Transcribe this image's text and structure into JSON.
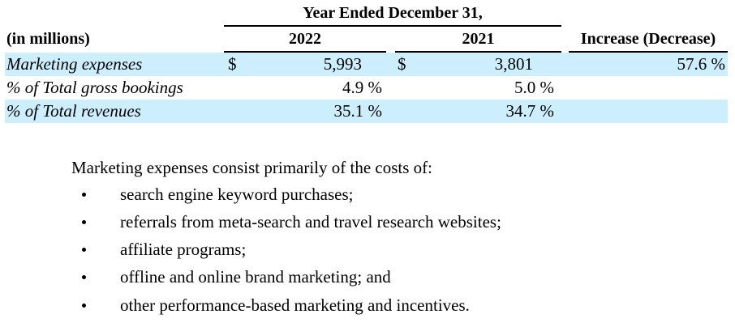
{
  "table": {
    "group_header": "Year Ended December 31,",
    "units_label": "(in millions)",
    "col_2022": "2022",
    "col_2021": "2021",
    "col_change": "Increase (Decrease)",
    "rows": [
      {
        "label": "Marketing expenses",
        "cur_2022": "$",
        "val_2022": "5,993",
        "cur_2021": "$",
        "val_2021": "3,801",
        "change": "57.6 %"
      },
      {
        "label": "% of Total gross bookings",
        "val_2022": "4.9 %",
        "val_2021": "5.0 %",
        "change": ""
      },
      {
        "label": "% of Total revenues",
        "val_2022": "35.1 %",
        "val_2021": "34.7 %",
        "change": ""
      }
    ],
    "band_color": "#cdeefc"
  },
  "description": {
    "intro": "Marketing expenses consist primarily of the costs of:",
    "bullets": [
      "search engine keyword purchases;",
      "referrals from meta-search and travel research websites;",
      "affiliate programs;",
      "offline and online brand marketing; and",
      "other performance-based marketing and incentives."
    ]
  }
}
